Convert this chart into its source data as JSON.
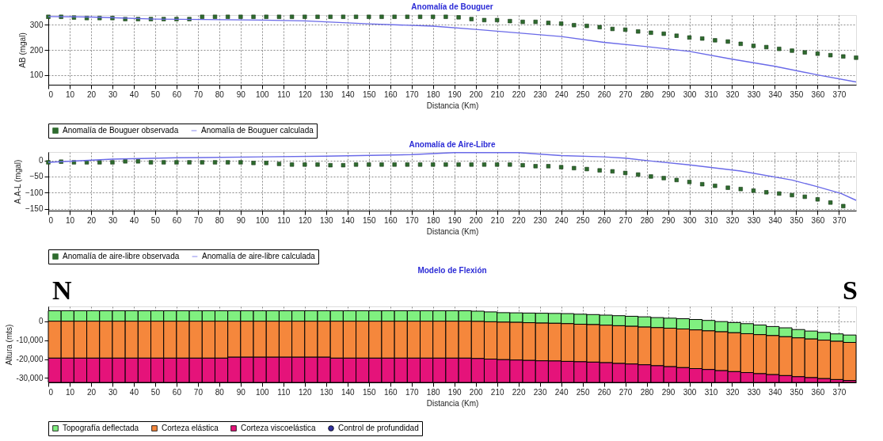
{
  "chart_data": [
    {
      "type": "scatter",
      "title": "Anomalía de Bouguer",
      "xlabel": "Distancia (Km)",
      "ylabel": "AB (mgal)",
      "xlim": [
        0,
        378
      ],
      "ylim": [
        62,
        338
      ],
      "xticks": [
        0,
        10,
        20,
        30,
        40,
        50,
        60,
        70,
        80,
        90,
        100,
        110,
        120,
        130,
        140,
        150,
        160,
        170,
        180,
        190,
        200,
        210,
        220,
        230,
        240,
        250,
        260,
        270,
        280,
        290,
        300,
        310,
        320,
        330,
        340,
        350,
        360,
        370
      ],
      "yticks": [
        100,
        200,
        300
      ],
      "grid": true,
      "legend": "bottom",
      "series": [
        {
          "name": "Anomalía de Bouguer observada",
          "type": "scatter",
          "marker": "square",
          "color": "#2e6b2e",
          "x": [
            0,
            6,
            12,
            18,
            24,
            30,
            36,
            42,
            48,
            54,
            60,
            66,
            72,
            78,
            84,
            90,
            96,
            102,
            108,
            114,
            120,
            126,
            132,
            138,
            144,
            150,
            156,
            162,
            168,
            174,
            180,
            186,
            192,
            198,
            204,
            210,
            216,
            222,
            228,
            234,
            240,
            246,
            252,
            258,
            264,
            270,
            276,
            282,
            288,
            294,
            300,
            306,
            312,
            318,
            324,
            330,
            336,
            342,
            348,
            354,
            360,
            366,
            372,
            378
          ],
          "values": [
            331,
            331,
            328,
            326,
            326,
            326,
            322,
            322,
            322,
            322,
            322,
            322,
            331,
            331,
            331,
            331,
            331,
            331,
            331,
            331,
            331,
            331,
            331,
            331,
            331,
            331,
            331,
            331,
            331,
            331,
            331,
            331,
            329,
            322,
            318,
            318,
            314,
            311,
            311,
            307,
            304,
            298,
            295,
            290,
            283,
            280,
            273,
            268,
            264,
            256,
            249,
            245,
            238,
            233,
            224,
            216,
            211,
            204,
            197,
            190,
            185,
            179,
            174,
            169
          ]
        },
        {
          "name": "Anomalía de Bouguer calculada",
          "type": "line",
          "line_style": "solid",
          "color": "#6a6ae8",
          "x": [
            0,
            20,
            50,
            100,
            120,
            150,
            180,
            200,
            240,
            260,
            280,
            300,
            320,
            340,
            360,
            378
          ],
          "values": [
            332,
            330,
            322,
            318,
            315,
            303,
            294,
            281,
            253,
            230,
            213,
            194,
            163,
            135,
            101,
            73
          ]
        }
      ]
    },
    {
      "type": "scatter",
      "title": "Anomalía de Aire-Libre",
      "xlabel": "Distancia (Km)",
      "ylabel": "A.A-L (mgal)",
      "xlim": [
        0,
        378
      ],
      "ylim": [
        -156,
        26
      ],
      "xticks": [
        0,
        10,
        20,
        30,
        40,
        50,
        60,
        70,
        80,
        90,
        100,
        110,
        120,
        130,
        140,
        150,
        160,
        170,
        180,
        190,
        200,
        210,
        220,
        230,
        240,
        250,
        260,
        270,
        280,
        290,
        300,
        310,
        320,
        330,
        340,
        350,
        360,
        370
      ],
      "yticks": [
        -150,
        -100,
        -50,
        0
      ],
      "grid": true,
      "legend": "bottom",
      "series": [
        {
          "name": "Anomalía de aire-libre observada",
          "type": "scatter",
          "marker": "square",
          "color": "#2e6b2e",
          "x": [
            0,
            6,
            12,
            18,
            24,
            30,
            36,
            42,
            48,
            54,
            60,
            66,
            72,
            78,
            84,
            90,
            96,
            102,
            108,
            114,
            120,
            126,
            132,
            138,
            144,
            150,
            156,
            162,
            168,
            174,
            180,
            186,
            192,
            198,
            204,
            210,
            216,
            222,
            228,
            234,
            240,
            246,
            252,
            258,
            264,
            270,
            276,
            282,
            288,
            294,
            300,
            306,
            312,
            318,
            324,
            330,
            336,
            342,
            348,
            354,
            360,
            366,
            372
          ],
          "values": [
            -6,
            -4,
            -6,
            -6,
            -6,
            -6,
            -3,
            -3,
            -6,
            -6,
            -6,
            -6,
            -6,
            -6,
            -6,
            -6,
            -8,
            -8,
            -11,
            -13,
            -13,
            -13,
            -15,
            -15,
            -13,
            -13,
            -13,
            -13,
            -13,
            -13,
            -13,
            -13,
            -13,
            -13,
            -13,
            -13,
            -13,
            -15,
            -18,
            -18,
            -21,
            -24,
            -27,
            -31,
            -34,
            -39,
            -44,
            -50,
            -55,
            -61,
            -67,
            -74,
            -79,
            -85,
            -89,
            -94,
            -99,
            -103,
            -108,
            -113,
            -121,
            -131,
            -142
          ]
        },
        {
          "name": "Anomalía de aire-libre calculada",
          "type": "line",
          "line_style": "solid",
          "color": "#6a6ae8",
          "x": [
            0,
            30,
            60,
            100,
            130,
            170,
            190,
            220,
            240,
            260,
            270,
            282,
            300,
            324,
            348,
            360,
            371,
            378
          ],
          "values": [
            -6,
            4,
            8,
            11,
            13,
            18,
            24,
            24,
            15,
            11,
            7,
            -2,
            -14,
            -33,
            -61,
            -82,
            -103,
            -124
          ]
        }
      ]
    },
    {
      "type": "bar",
      "title": "Modelo de Flexión",
      "xlabel": "Distancia (Km)",
      "ylabel": "Altura (mts)",
      "annotations": [
        "N",
        "S"
      ],
      "xlim": [
        0,
        378
      ],
      "ylim": [
        -32300,
        7800
      ],
      "xticks": [
        0,
        10,
        20,
        30,
        40,
        50,
        60,
        70,
        80,
        90,
        100,
        110,
        120,
        130,
        140,
        150,
        160,
        170,
        180,
        190,
        200,
        210,
        220,
        230,
        240,
        250,
        260,
        270,
        280,
        290,
        300,
        310,
        320,
        330,
        340,
        350,
        360,
        370
      ],
      "yticks": [
        {
          "value": -30000,
          "label": "-30,000"
        },
        {
          "value": -20000,
          "label": "-20,000"
        },
        {
          "value": -10000,
          "label": "-10,000"
        },
        0
      ],
      "grid": true,
      "legend": "bottom",
      "x": [
        3,
        9,
        15,
        21,
        27,
        33,
        39,
        45,
        51,
        57,
        63,
        69,
        75,
        81,
        87,
        93,
        99,
        105,
        111,
        117,
        123,
        129,
        135,
        141,
        147,
        153,
        159,
        165,
        171,
        177,
        183,
        189,
        195,
        201,
        207,
        213,
        219,
        225,
        231,
        237,
        243,
        249,
        255,
        261,
        267,
        273,
        279,
        285,
        291,
        297,
        303,
        309,
        315,
        321,
        327,
        333,
        339,
        345,
        351,
        357,
        363,
        369,
        375
      ],
      "series": [
        {
          "name": "Topografía deflectada",
          "color": "#80f080",
          "base": [
            0,
            0,
            0,
            0,
            0,
            0,
            0,
            0,
            0,
            0,
            0,
            0,
            0,
            0,
            0,
            0,
            0,
            0,
            0,
            0,
            0,
            0,
            0,
            0,
            0,
            0,
            0,
            0,
            0,
            0,
            0,
            0,
            0,
            -100,
            -300,
            -500,
            -600,
            -800,
            -1000,
            -1100,
            -1300,
            -1600,
            -1800,
            -2100,
            -2400,
            -2700,
            -3100,
            -3400,
            -3700,
            -4100,
            -4600,
            -5100,
            -5600,
            -6100,
            -6600,
            -7100,
            -7600,
            -8200,
            -8800,
            -9400,
            -10000,
            -10600,
            -11200
          ],
          "values": [
            5500,
            5500,
            5500,
            5500,
            5500,
            5500,
            5500,
            5500,
            5500,
            5500,
            5500,
            5500,
            5500,
            5500,
            5500,
            5500,
            5500,
            5500,
            5500,
            5500,
            5500,
            5500,
            5500,
            5500,
            5500,
            5500,
            5500,
            5500,
            5500,
            5500,
            5500,
            5500,
            5500,
            5400,
            5200,
            5000,
            5000,
            5100,
            5200,
            5200,
            5300,
            5300,
            5300,
            5300,
            5300,
            5300,
            5400,
            5300,
            5300,
            5400,
            5500,
            5500,
            5400,
            5400,
            5300,
            5100,
            4800,
            4700,
            4400,
            4200,
            4100,
            3900,
            3900
          ]
        },
        {
          "name": "Corteza elástica",
          "color": "#f5873c",
          "base": [
            -19500,
            -19500,
            -19500,
            -19500,
            -19500,
            -19500,
            -19500,
            -19500,
            -19500,
            -19500,
            -19500,
            -19500,
            -19500,
            -19500,
            -19000,
            -19000,
            -19000,
            -19000,
            -19000,
            -19000,
            -19000,
            -19000,
            -19500,
            -19500,
            -19500,
            -19500,
            -19500,
            -19500,
            -19500,
            -19500,
            -19500,
            -19500,
            -19500,
            -19700,
            -20000,
            -20300,
            -20500,
            -20700,
            -20900,
            -21000,
            -21200,
            -21400,
            -21600,
            -21900,
            -22300,
            -22600,
            -23000,
            -23500,
            -24000,
            -24500,
            -25000,
            -25500,
            -26100,
            -26600,
            -27100,
            -27700,
            -28200,
            -28700,
            -29300,
            -29800,
            -30300,
            -30800,
            -31300
          ],
          "values": [
            19500,
            19500,
            19500,
            19500,
            19500,
            19500,
            19500,
            19500,
            19500,
            19500,
            19500,
            19500,
            19500,
            19500,
            19000,
            19000,
            19000,
            19000,
            19000,
            19000,
            19000,
            19000,
            19500,
            19500,
            19500,
            19500,
            19500,
            19500,
            19500,
            19500,
            19500,
            19500,
            19500,
            19600,
            19700,
            19800,
            19900,
            19900,
            19900,
            19900,
            19900,
            19800,
            19800,
            19800,
            19900,
            19900,
            19900,
            20100,
            20300,
            20400,
            20400,
            20400,
            20500,
            20500,
            20500,
            20600,
            20600,
            20500,
            20500,
            20400,
            20300,
            20200,
            20100
          ]
        },
        {
          "name": "Corteza viscoelástica",
          "color": "#e5137a",
          "base": [
            -32300,
            -32300,
            -32300,
            -32300,
            -32300,
            -32300,
            -32300,
            -32300,
            -32300,
            -32300,
            -32300,
            -32300,
            -32300,
            -32300,
            -32300,
            -32300,
            -32300,
            -32300,
            -32300,
            -32300,
            -32300,
            -32300,
            -32300,
            -32300,
            -32300,
            -32300,
            -32300,
            -32300,
            -32300,
            -32300,
            -32300,
            -32300,
            -32300,
            -32300,
            -32300,
            -32300,
            -32300,
            -32300,
            -32300,
            -32300,
            -32300,
            -32300,
            -32300,
            -32300,
            -32300,
            -32300,
            -32300,
            -32300,
            -32300,
            -32300,
            -32300,
            -32300,
            -32300,
            -32300,
            -32300,
            -32300,
            -32300,
            -32300,
            -32300,
            -32300,
            -32300,
            -32300,
            -32300
          ],
          "values": [
            12800,
            12800,
            12800,
            12800,
            12800,
            12800,
            12800,
            12800,
            12800,
            12800,
            12800,
            12800,
            12800,
            12800,
            13300,
            13300,
            13300,
            13300,
            13300,
            13300,
            13300,
            13300,
            12800,
            12800,
            12800,
            12800,
            12800,
            12800,
            12800,
            12800,
            12800,
            12800,
            12800,
            12600,
            12300,
            12000,
            11800,
            11600,
            11400,
            11300,
            11100,
            10900,
            10700,
            10400,
            10000,
            9700,
            9300,
            8800,
            8300,
            7800,
            7300,
            6800,
            6200,
            5700,
            5200,
            4600,
            4100,
            3600,
            3000,
            2500,
            2000,
            1500,
            1000
          ]
        },
        {
          "name": "Control de profundidad",
          "type": "scatter",
          "marker": "circle",
          "color": "#3030a0",
          "values": [
            null,
            null,
            null,
            null,
            null,
            null,
            null,
            null,
            null,
            null,
            null,
            null,
            null,
            null,
            null,
            null,
            null,
            null,
            null,
            null,
            null,
            null,
            null,
            null,
            null,
            null,
            null,
            null,
            null,
            null,
            null,
            null,
            null,
            null,
            null,
            null,
            null,
            null,
            null,
            null,
            null,
            null,
            null,
            null,
            null,
            null,
            null,
            null,
            null,
            null,
            null,
            null,
            null,
            null,
            null,
            null,
            null,
            null,
            null,
            null,
            null,
            null,
            null
          ]
        }
      ]
    }
  ]
}
